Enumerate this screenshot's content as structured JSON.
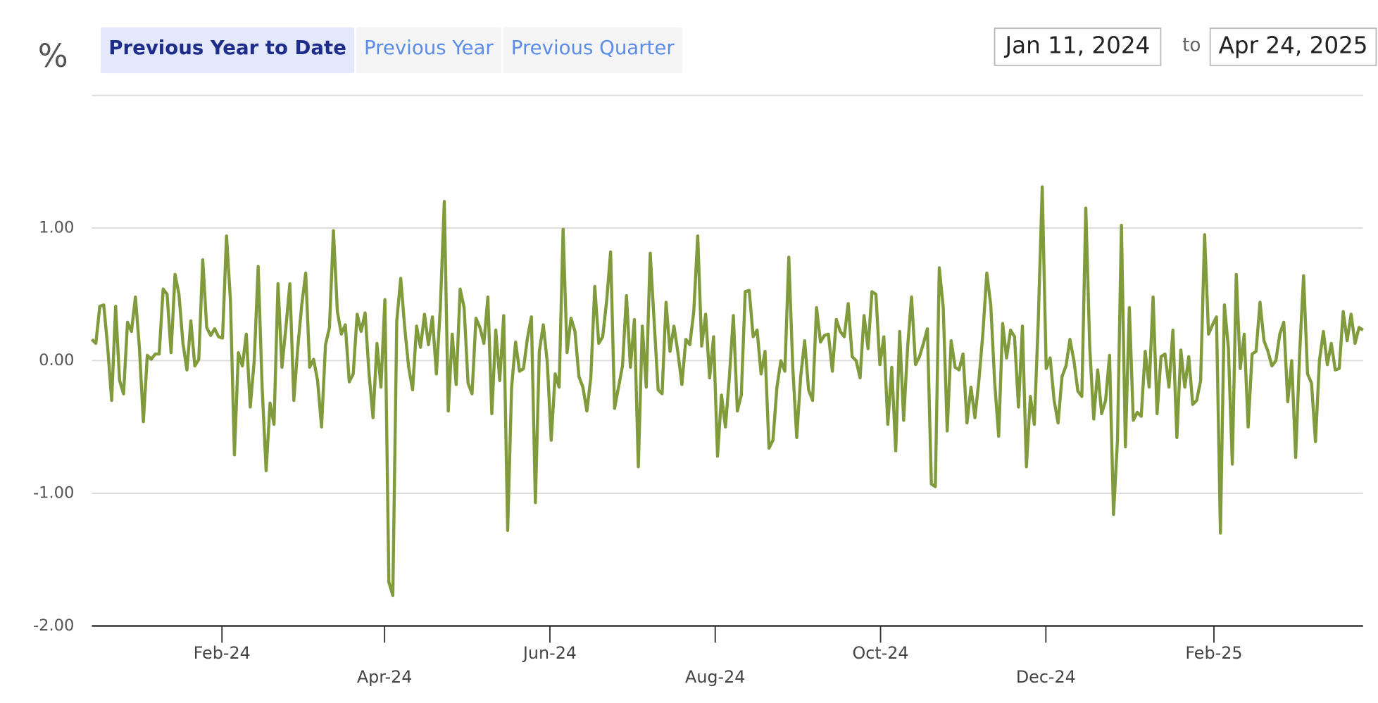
{
  "unit_label": "%",
  "range_buttons": [
    "Previous Year to Date",
    "Previous Year",
    "Previous Quarter"
  ],
  "selected_button": 0,
  "date_range": {
    "from": "Jan 11, 2024",
    "separator": "to",
    "to": "Apr 24, 2025"
  },
  "chart_data": {
    "type": "line",
    "xlim": [
      "2023-12-15",
      "2025-03-28"
    ],
    "xticks": [
      {
        "value": "2024-02-01",
        "label": "Feb-24"
      },
      {
        "value": "2024-04-01",
        "label": "Apr-24"
      },
      {
        "value": "2024-06-01",
        "label": "Jun-24"
      },
      {
        "value": "2024-08-01",
        "label": "Aug-24"
      },
      {
        "value": "2024-10-01",
        "label": "Oct-24"
      },
      {
        "value": "2024-12-01",
        "label": "Dec-24"
      },
      {
        "value": "2025-02-01",
        "label": "Feb-25"
      }
    ],
    "ylim": [
      -2,
      2
    ],
    "yticks": [
      {
        "value": -2,
        "label": "-2.00"
      },
      {
        "value": -1,
        "label": "-1.00"
      },
      {
        "value": 0,
        "label": "0.00"
      },
      {
        "value": 1,
        "label": "1.00"
      }
    ],
    "grid": true,
    "series": [
      {
        "color": "#7f9b3c",
        "values": [
          0.16,
          0.13,
          0.41,
          0.42,
          0.1,
          -0.3,
          0.41,
          -0.15,
          -0.25,
          0.29,
          0.22,
          0.48,
          0.1,
          -0.46,
          0.04,
          0.01,
          0.05,
          0.05,
          0.54,
          0.5,
          0.06,
          0.65,
          0.5,
          0.13,
          -0.07,
          0.3,
          -0.04,
          0.01,
          0.76,
          0.25,
          0.19,
          0.24,
          0.18,
          0.17,
          0.94,
          0.45,
          -0.71,
          0.06,
          -0.04,
          0.2,
          -0.35,
          0.0,
          0.71,
          -0.2,
          -0.83,
          -0.32,
          -0.48,
          0.58,
          -0.05,
          0.25,
          0.58,
          -0.3,
          0.1,
          0.42,
          0.66,
          -0.05,
          0.01,
          -0.15,
          -0.5,
          0.12,
          0.25,
          0.98,
          0.37,
          0.2,
          0.27,
          -0.16,
          -0.1,
          0.35,
          0.22,
          0.36,
          -0.1,
          -0.43,
          0.13,
          -0.2,
          0.46,
          -1.67,
          -1.77,
          0.3,
          0.62,
          0.25,
          -0.05,
          -0.22,
          0.26,
          0.1,
          0.35,
          0.12,
          0.33,
          -0.1,
          0.4,
          1.2,
          -0.38,
          0.2,
          -0.18,
          0.54,
          0.4,
          -0.17,
          -0.25,
          0.32,
          0.25,
          0.13,
          0.48,
          -0.4,
          0.23,
          -0.15,
          0.34,
          -1.28,
          -0.2,
          0.14,
          -0.08,
          -0.06,
          0.17,
          0.33,
          -1.07,
          0.07,
          0.27,
          -0.01,
          -0.6,
          -0.1,
          -0.2,
          0.99,
          0.06,
          0.32,
          0.22,
          -0.12,
          -0.2,
          -0.38,
          -0.13,
          0.56,
          0.13,
          0.18,
          0.45,
          0.82,
          -0.36,
          -0.2,
          -0.04,
          0.49,
          -0.05,
          0.31,
          -0.8,
          0.26,
          -0.2,
          0.81,
          0.29,
          -0.22,
          -0.25,
          0.44,
          0.07,
          0.26,
          0.06,
          -0.18,
          0.16,
          0.12,
          0.37,
          0.94,
          0.11,
          0.35,
          -0.13,
          0.18,
          -0.72,
          -0.26,
          -0.5,
          -0.12,
          0.34,
          -0.38,
          -0.26,
          0.52,
          0.53,
          0.18,
          0.23,
          -0.1,
          0.07,
          -0.66,
          -0.6,
          -0.2,
          0.0,
          -0.08,
          0.78,
          -0.05,
          -0.58,
          -0.12,
          0.15,
          -0.22,
          -0.3,
          0.4,
          0.14,
          0.19,
          0.2,
          -0.08,
          0.31,
          0.22,
          0.18,
          0.43,
          0.03,
          0.0,
          -0.13,
          0.34,
          0.09,
          0.52,
          0.5,
          -0.03,
          0.18,
          -0.48,
          -0.05,
          -0.68,
          0.22,
          -0.45,
          0.1,
          0.48,
          -0.03,
          0.03,
          0.13,
          0.24,
          -0.93,
          -0.95,
          0.7,
          0.4,
          -0.53,
          0.15,
          -0.05,
          -0.07,
          0.05,
          -0.47,
          -0.2,
          -0.43,
          -0.15,
          0.2,
          0.66,
          0.42,
          -0.17,
          -0.57,
          0.28,
          0.02,
          0.23,
          0.18,
          -0.35,
          0.26,
          -0.8,
          -0.27,
          -0.48,
          0.3,
          1.31,
          -0.06,
          0.02,
          -0.3,
          -0.47,
          -0.12,
          -0.04,
          0.16,
          0.0,
          -0.23,
          -0.27,
          1.15,
          0.1,
          -0.44,
          -0.07,
          -0.4,
          -0.3,
          0.04,
          -1.16,
          -0.6,
          1.02,
          -0.65,
          0.4,
          -0.45,
          -0.39,
          -0.42,
          0.07,
          -0.2,
          0.48,
          -0.4,
          0.03,
          0.05,
          -0.2,
          0.23,
          -0.58,
          0.08,
          -0.2,
          0.03,
          -0.33,
          -0.3,
          -0.15,
          0.95,
          0.2,
          0.27,
          0.33,
          -1.3,
          0.42,
          0.1,
          -0.78,
          0.65,
          -0.06,
          0.2,
          -0.5,
          0.05,
          0.07,
          0.44,
          0.15,
          0.07,
          -0.04,
          0.0,
          0.2,
          0.29,
          -0.31,
          0.0,
          -0.73,
          0.05,
          0.64,
          -0.1,
          -0.17,
          -0.61,
          0.0,
          0.22,
          -0.03,
          0.13,
          -0.07,
          -0.06,
          0.37,
          0.15,
          0.35,
          0.13,
          0.25,
          0.23
        ]
      }
    ]
  }
}
